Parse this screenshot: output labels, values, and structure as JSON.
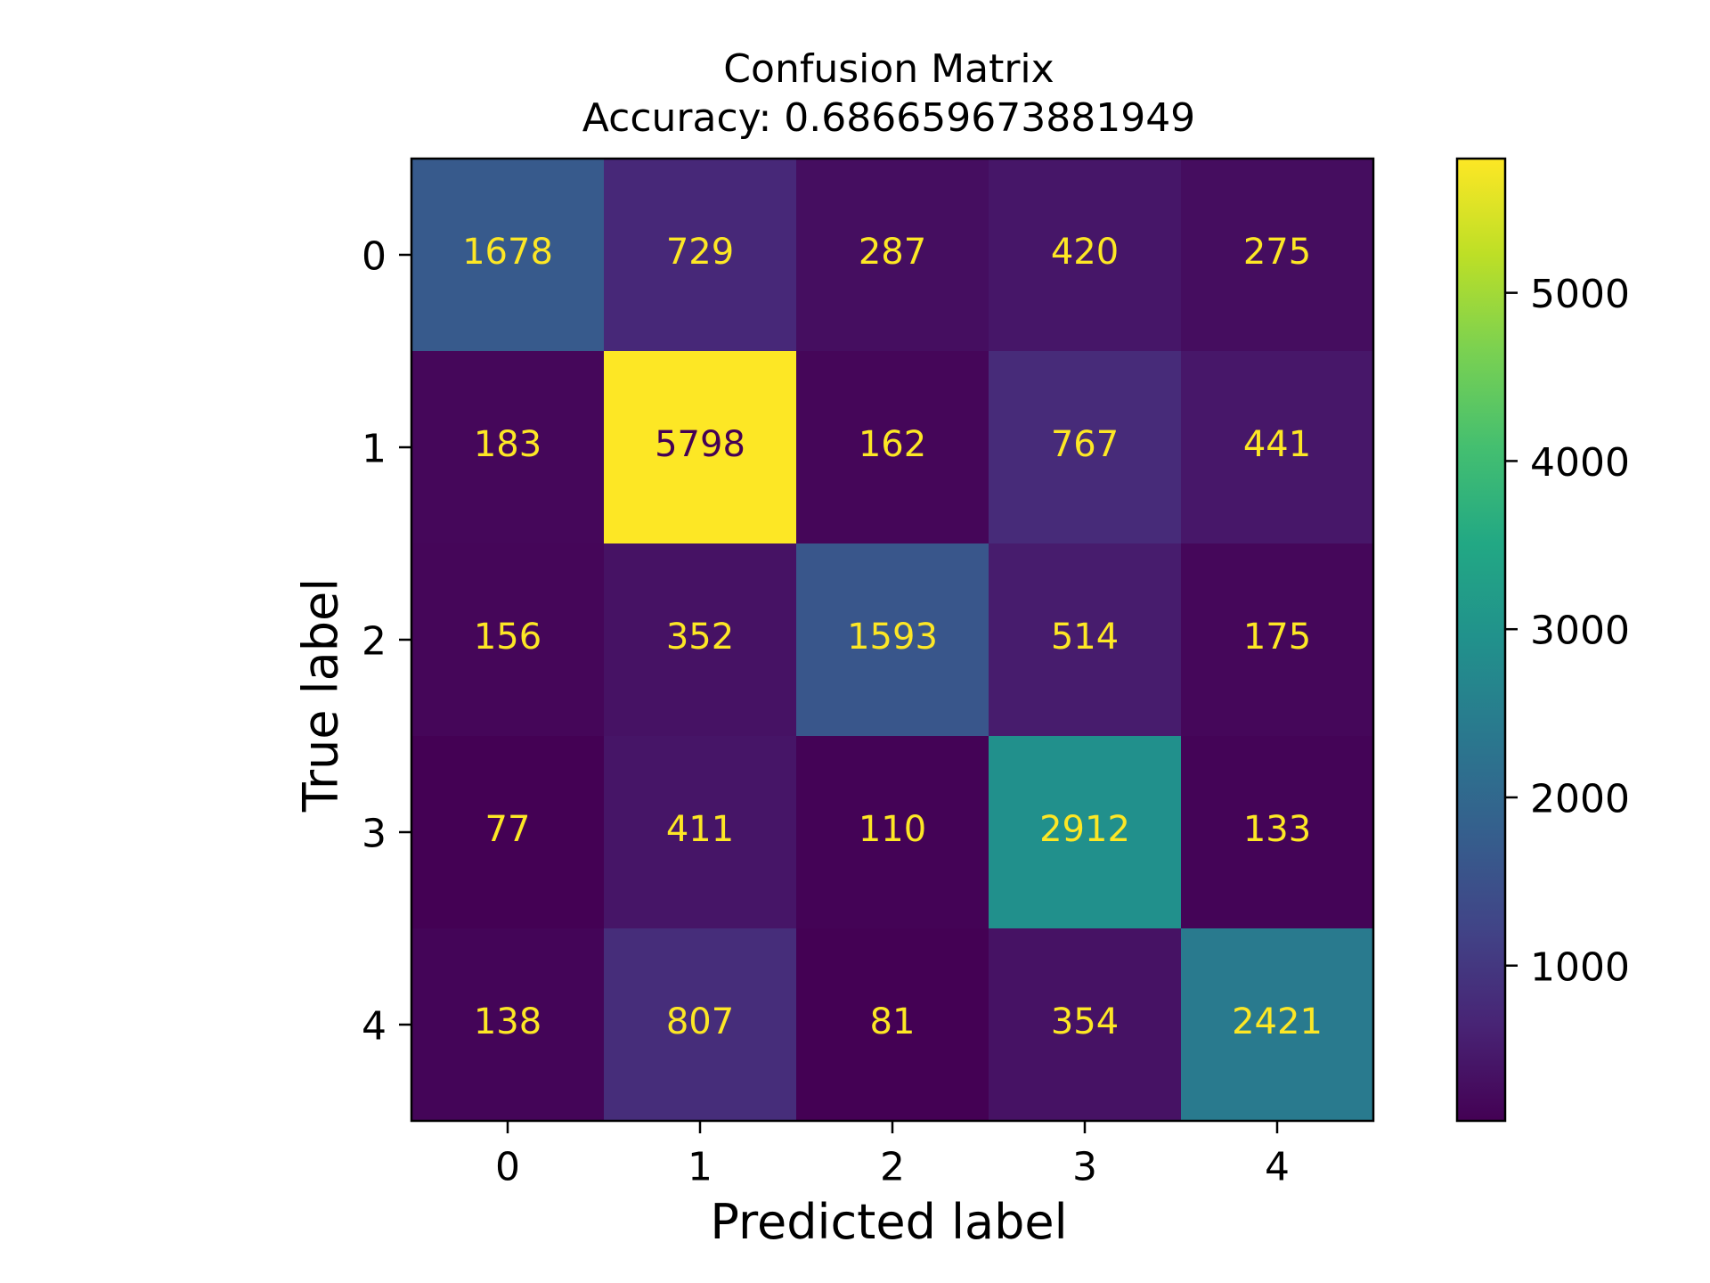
{
  "chart_data": {
    "type": "heatmap",
    "title": "Confusion Matrix",
    "subtitle": "Accuracy: 0.686659673881949",
    "xlabel": "Predicted label",
    "ylabel": "True label",
    "x_categories": [
      "0",
      "1",
      "2",
      "3",
      "4"
    ],
    "y_categories": [
      "0",
      "1",
      "2",
      "3",
      "4"
    ],
    "values": [
      [
        1678,
        729,
        287,
        420,
        275
      ],
      [
        183,
        5798,
        162,
        767,
        441
      ],
      [
        156,
        352,
        1593,
        514,
        175
      ],
      [
        77,
        411,
        110,
        2912,
        133
      ],
      [
        138,
        807,
        81,
        354,
        2421
      ]
    ],
    "colormap": "viridis",
    "colorbar": {
      "min": 77,
      "max": 5798,
      "ticks": [
        1000,
        2000,
        3000,
        4000,
        5000
      ],
      "tick_labels": [
        "1000",
        "2000",
        "3000",
        "4000",
        "5000"
      ]
    },
    "text_color_light": "#fde725",
    "text_color_dark": "#440154",
    "grid": false,
    "legend": "colorbar-right"
  }
}
